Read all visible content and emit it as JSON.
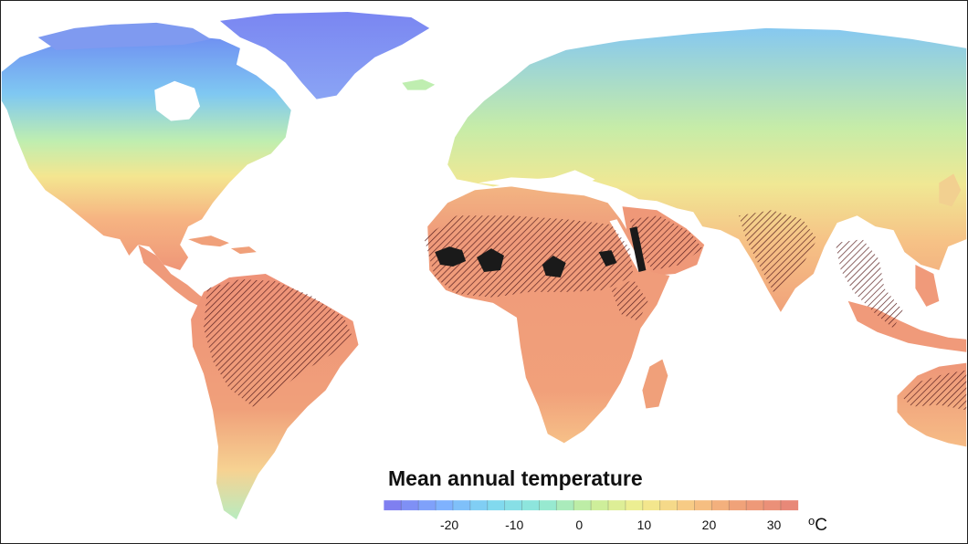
{
  "legend": {
    "title": "Mean annual temperature",
    "unit_degree": "o",
    "unit_letter": "C",
    "min": -30,
    "max": 34,
    "ticks": [
      {
        "value": -20,
        "label": "-20"
      },
      {
        "value": -10,
        "label": "-10"
      },
      {
        "value": 0,
        "label": "0"
      },
      {
        "value": 10,
        "label": "10"
      },
      {
        "value": 20,
        "label": "20"
      },
      {
        "value": 30,
        "label": "30"
      }
    ],
    "color_stops": [
      "#7f7ff0",
      "#7fb0ff",
      "#80d8f0",
      "#90e8d8",
      "#c6ee9c",
      "#f2ee90",
      "#f8c884",
      "#f0a078",
      "#e88878"
    ],
    "segments": 24
  },
  "colors": {
    "frame": "#222222",
    "hatch": "#5a2020",
    "hottest_zones": "#1a1a1a",
    "ocean": "#ffffff"
  }
}
